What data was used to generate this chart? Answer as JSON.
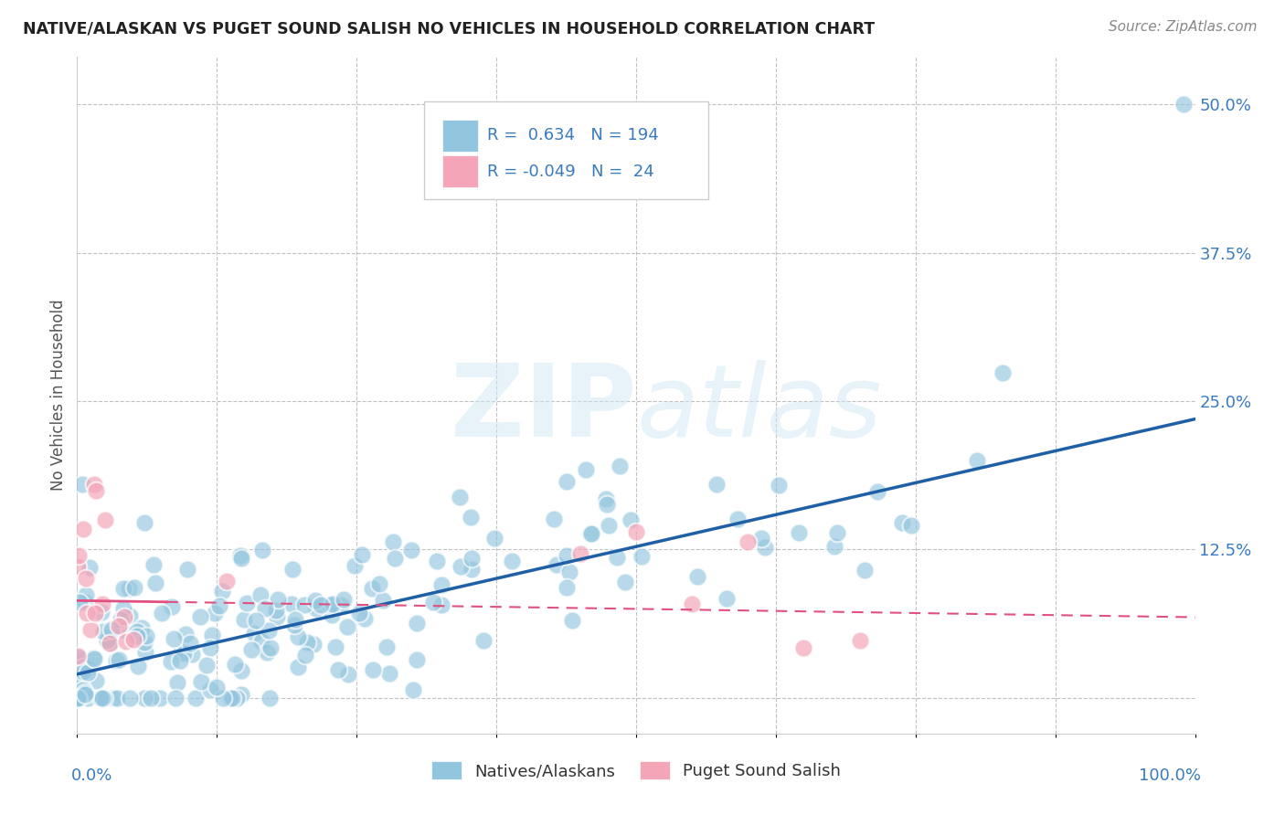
{
  "title": "NATIVE/ALASKAN VS PUGET SOUND SALISH NO VEHICLES IN HOUSEHOLD CORRELATION CHART",
  "source": "Source: ZipAtlas.com",
  "ylabel": "No Vehicles in Household",
  "y_ticks": [
    0.0,
    0.125,
    0.25,
    0.375,
    0.5
  ],
  "y_tick_labels": [
    "",
    "12.5%",
    "25.0%",
    "37.5%",
    "50.0%"
  ],
  "legend_label1": "Natives/Alaskans",
  "legend_label2": "Puget Sound Salish",
  "legend_R1": "0.634",
  "legend_N1": "194",
  "legend_R2": "-0.049",
  "legend_N2": "24",
  "blue_color": "#92c5de",
  "pink_color": "#f4a6b8",
  "line_blue": "#1f5fa6",
  "line_pink": "#e05080",
  "watermark_color": "#d0e8f5",
  "background_color": "#ffffff",
  "grid_color": "#bbbbbb",
  "xlim": [
    0.0,
    1.0
  ],
  "ylim": [
    -0.03,
    0.54
  ],
  "blue_line_x0": 0.0,
  "blue_line_y0": 0.02,
  "blue_line_x1": 1.0,
  "blue_line_y1": 0.235,
  "pink_line_x0": 0.0,
  "pink_line_y0": 0.082,
  "pink_line_x1": 1.0,
  "pink_line_y1": 0.068
}
